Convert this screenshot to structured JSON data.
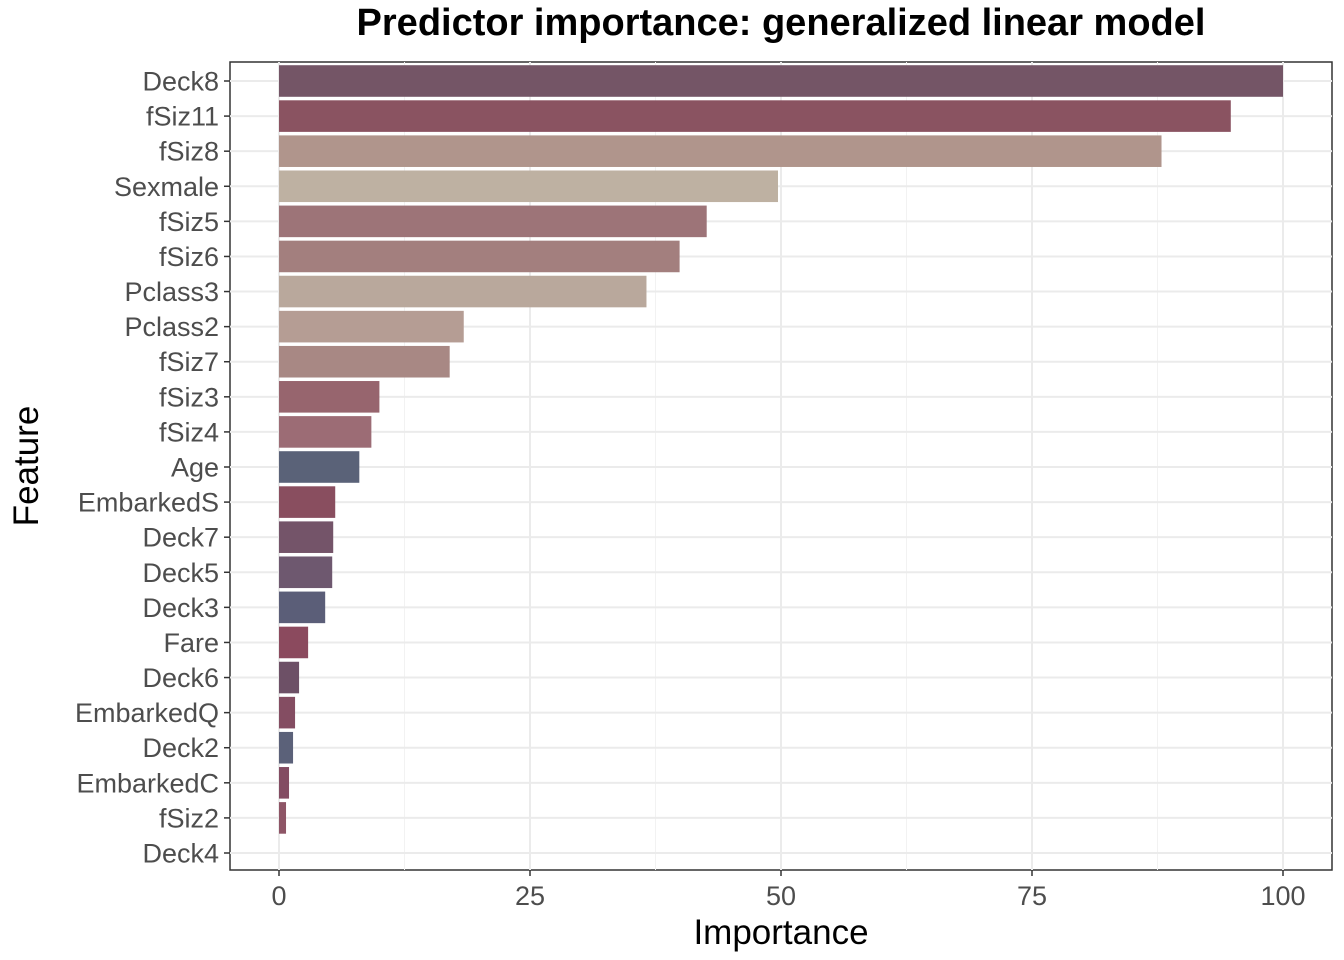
{
  "chart_data": {
    "type": "bar",
    "orientation": "horizontal",
    "title": "Predictor importance: generalized linear model",
    "xlabel": "Importance",
    "ylabel": "Feature",
    "xlim": [
      0,
      100
    ],
    "x_ticks": [
      0,
      25,
      50,
      75,
      100
    ],
    "grid": true,
    "legend": "none",
    "categories": [
      "Deck8",
      "fSiz11",
      "fSiz8",
      "Sexmale",
      "fSiz5",
      "fSiz6",
      "Pclass3",
      "Pclass2",
      "fSiz7",
      "fSiz3",
      "fSiz4",
      "Age",
      "EmbarkedS",
      "Deck7",
      "Deck5",
      "Deck3",
      "Fare",
      "Deck6",
      "EmbarkedQ",
      "Deck2",
      "EmbarkedC",
      "fSiz2",
      "Deck4"
    ],
    "values": [
      100,
      94.8,
      87.9,
      49.7,
      42.6,
      39.9,
      36.6,
      18.4,
      17.0,
      10.0,
      9.2,
      8.0,
      5.6,
      5.4,
      5.3,
      4.6,
      2.9,
      2.0,
      1.6,
      1.4,
      1.0,
      0.7,
      0
    ],
    "colors": [
      "#745566",
      "#8a5361",
      "#b0958c",
      "#beb1a2",
      "#9d7478",
      "#a37f7e",
      "#b9a89c",
      "#b59d94",
      "#a88884",
      "#97656e",
      "#9c6c75",
      "#5a6278",
      "#894e5f",
      "#745469",
      "#6e586f",
      "#5b5e78",
      "#8b4a5e",
      "#6d5066",
      "#844d62",
      "#5b6179",
      "#834c62",
      "#8e5566",
      "#646983"
    ]
  }
}
